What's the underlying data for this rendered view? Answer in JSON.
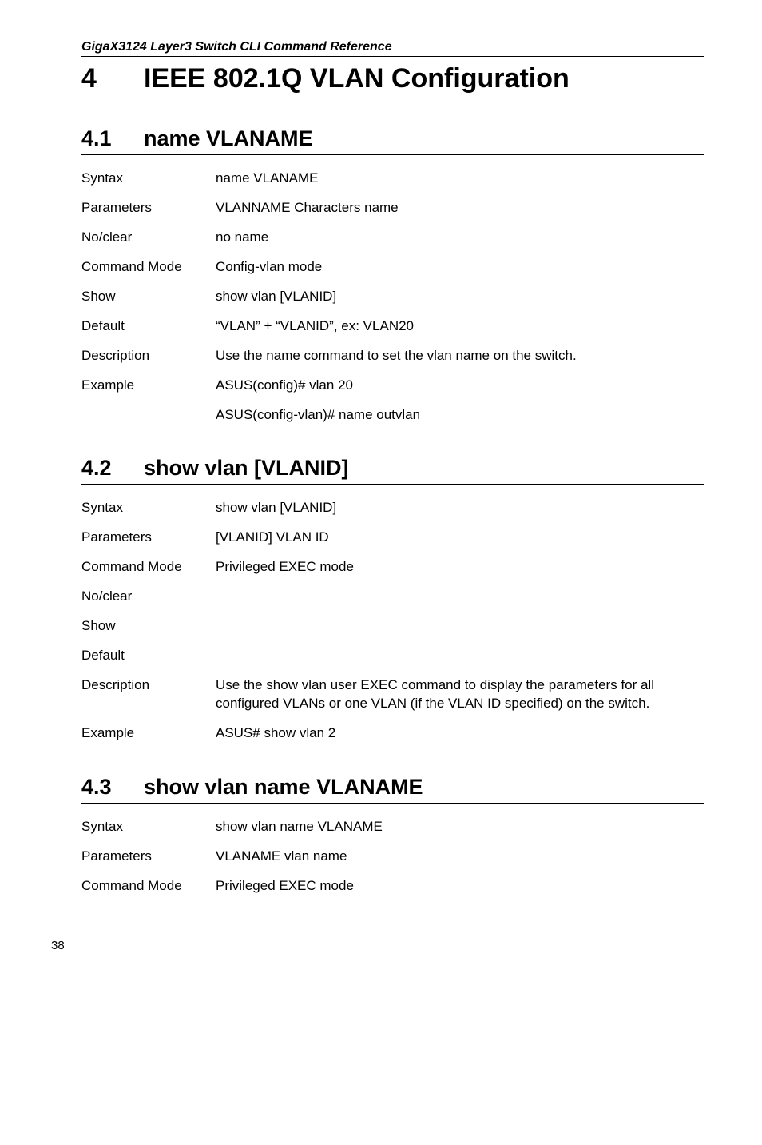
{
  "header": {
    "running": "GigaX3124 Layer3 Switch CLI Command Reference"
  },
  "chapter": {
    "number": "4",
    "title": "IEEE 802.1Q VLAN Configuration"
  },
  "sections": [
    {
      "number": "4.1",
      "title": "name VLANAME",
      "rows": [
        {
          "label": "Syntax",
          "value": "name VLANAME"
        },
        {
          "label": "Parameters",
          "value": "VLANNAME  Characters name"
        },
        {
          "label": "No/clear",
          "value": "no name"
        },
        {
          "label": "Command Mode",
          "value": "Config-vlan mode"
        },
        {
          "label": "Show",
          "value": "show vlan [VLANID]"
        },
        {
          "label": "Default",
          "value": "“VLAN” + “VLANID”, ex: VLAN20"
        },
        {
          "label": "Description",
          "value": "Use the name command to set the vlan name on the switch."
        },
        {
          "label": "Example",
          "value": "ASUS(config)# vlan 20"
        },
        {
          "label": "",
          "value": "ASUS(config-vlan)# name outvlan"
        }
      ]
    },
    {
      "number": "4.2",
      "title": "show vlan [VLANID]",
      "rows": [
        {
          "label": "Syntax",
          "value": "show vlan [VLANID]"
        },
        {
          "label": "Parameters",
          "value": "[VLANID]  VLAN ID"
        },
        {
          "label": "Command Mode",
          "value": "Privileged EXEC mode"
        },
        {
          "label": "No/clear",
          "value": ""
        },
        {
          "label": "Show",
          "value": ""
        },
        {
          "label": "Default",
          "value": ""
        },
        {
          "label": "Description",
          "value": "Use the show vlan user EXEC command to display the parameters for all configured VLANs or one VLAN (if the VLAN ID specified) on the switch."
        },
        {
          "label": "Example",
          "value": "ASUS# show vlan 2"
        }
      ]
    },
    {
      "number": "4.3",
      "title": "show vlan name VLANAME",
      "rows": [
        {
          "label": "Syntax",
          "value": "show vlan name VLANAME"
        },
        {
          "label": "Parameters",
          "value": "VLANAME  vlan name"
        },
        {
          "label": "Command Mode",
          "value": "Privileged EXEC mode"
        }
      ]
    }
  ],
  "pageNumber": "38"
}
